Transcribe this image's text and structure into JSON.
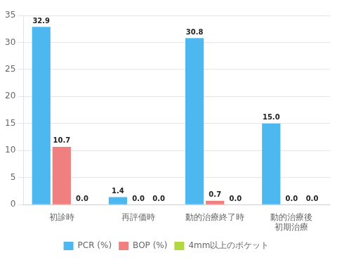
{
  "chart_data": {
    "type": "bar",
    "categories": [
      "初診時",
      "再評価時",
      "動的治療終了時",
      "動的治療後\n初期治療"
    ],
    "series": [
      {
        "name": "PCR (%)",
        "color": "#4db8f0",
        "values": [
          32.9,
          1.4,
          30.8,
          15.0
        ],
        "value_labels": [
          "32.9",
          "1.4",
          "30.8",
          "15.0"
        ]
      },
      {
        "name": "BOP (%)",
        "color": "#f08080",
        "values": [
          10.7,
          0.0,
          0.7,
          0.0
        ],
        "value_labels": [
          "10.7",
          "0.0",
          "0.7",
          "0.0"
        ]
      },
      {
        "name": "4mm以上のポケット",
        "color": "#b0d840",
        "values": [
          0.0,
          0.0,
          0.0,
          0.0
        ],
        "value_labels": [
          "0.0",
          "0.0",
          "0.0",
          "0.0"
        ]
      }
    ],
    "ylim": [
      0,
      35
    ],
    "yticks": [
      0,
      5,
      10,
      15,
      20,
      25,
      30,
      35
    ],
    "grid": true,
    "legend": "bottom",
    "data_labels": true
  }
}
